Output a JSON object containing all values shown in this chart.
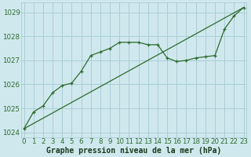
{
  "title": "Graphe pression niveau de la mer (hPa)",
  "bg_color": "#cfe8ee",
  "grid_color": "#aacdd5",
  "line_color": "#2d6a2d",
  "xlim": [
    -0.3,
    23.3
  ],
  "ylim": [
    1023.8,
    1029.4
  ],
  "yticks": [
    1024,
    1025,
    1026,
    1027,
    1028,
    1029
  ],
  "xticks": [
    0,
    1,
    2,
    3,
    4,
    5,
    6,
    7,
    8,
    9,
    10,
    11,
    12,
    13,
    14,
    15,
    16,
    17,
    18,
    19,
    20,
    21,
    22,
    23
  ],
  "series1_x": [
    0,
    1,
    2,
    3,
    4,
    5,
    6,
    7,
    8,
    9,
    10,
    11,
    12,
    13,
    14,
    15,
    16,
    17,
    18,
    19,
    20,
    21,
    22,
    23
  ],
  "series1_y": [
    1024.15,
    1024.85,
    1025.1,
    1025.65,
    1025.95,
    1026.05,
    1026.55,
    1027.2,
    1027.35,
    1027.5,
    1027.75,
    1027.75,
    1027.75,
    1027.65,
    1027.65,
    1027.1,
    1026.95,
    1027.0,
    1027.1,
    1027.15,
    1027.2,
    1028.3,
    1028.85,
    1029.2
  ],
  "series2_x": [
    0,
    23
  ],
  "series2_y": [
    1024.15,
    1029.2
  ],
  "xlabel_fontsize": 7.0,
  "tick_fontsize": 6.2,
  "ylabel_color": "#2d6a2d",
  "xlabel_color": "#1a3a1a"
}
